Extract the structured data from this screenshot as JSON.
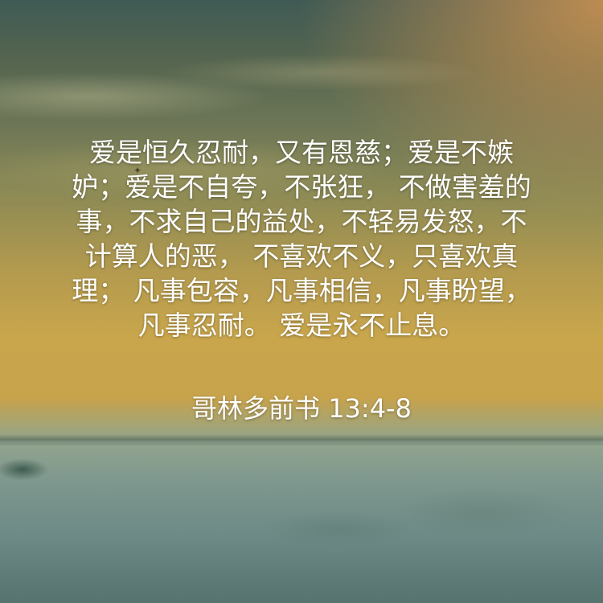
{
  "verse": {
    "lines": [
      "爱是恒久忍耐，又有恩慈；爱是不嫉",
      "妒；爱是不自夸，不张狂， 不做害羞的",
      "事，不求自己的益处，不轻易发怒，不",
      "计算人的恶， 不喜欢不义，只喜欢真",
      "理； 凡事包容，凡事相信，凡事盼望，",
      "凡事忍耐。 爱是永不止息。"
    ],
    "reference": "哥林多前书 13:4-8"
  },
  "background": {
    "description_colors": {
      "sky_top": "#3f5a55",
      "sky_glow": "#d69650",
      "sunset_band": "#c9a64c",
      "fog": "#6c8785"
    }
  }
}
